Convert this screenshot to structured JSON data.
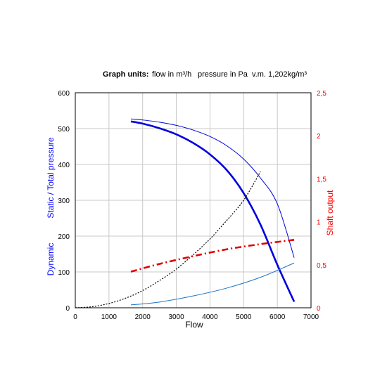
{
  "header": {
    "label": "Graph units:",
    "flow_units": "flow in m³/h",
    "pressure_units": "pressure in Pa",
    "density": "v.m. 1,202kg/m³"
  },
  "chart_data": {
    "type": "line",
    "xlabel": "Flow",
    "ylabel_left_static": "Static / Total pressure",
    "ylabel_left_dynamic": "Dynamic",
    "ylabel_right": "Shaft output",
    "xlim": [
      0,
      7000
    ],
    "ylim_left": [
      0,
      600
    ],
    "ylim_right": [
      0,
      2.5
    ],
    "x_ticks": [
      0,
      1000,
      2000,
      3000,
      4000,
      5000,
      6000,
      7000
    ],
    "x_tick_labels": [
      "0",
      "1000",
      "2000",
      "3000",
      "4000",
      "5000",
      "6000",
      "7000"
    ],
    "y_left_ticks": [
      0,
      100,
      200,
      300,
      400,
      500,
      600
    ],
    "y_left_tick_labels": [
      "0",
      "100",
      "200",
      "300",
      "400",
      "500",
      "600"
    ],
    "y_right_ticks": [
      0,
      0.5,
      1,
      1.5,
      2,
      2.5
    ],
    "y_right_tick_labels": [
      "0",
      "0,5",
      "1",
      "1,5",
      "2",
      "2,5"
    ],
    "grid": true,
    "colors": {
      "static": "#0000dd",
      "total": "#0000dd",
      "dynamic": "#1a73c8",
      "shaft": "#e00000",
      "system": "#000000",
      "left_axis_label": "#0000ff",
      "right_axis_label": "#ff0000"
    },
    "series": [
      {
        "key": "total",
        "axis": "left",
        "style": "thin",
        "x": [
          1650,
          2000,
          2500,
          3000,
          3500,
          4000,
          4500,
          5000,
          5500,
          6000,
          6500
        ],
        "y": [
          527,
          524,
          518,
          509,
          496,
          478,
          452,
          415,
          362,
          290,
          140
        ]
      },
      {
        "key": "static",
        "axis": "left",
        "style": "thick",
        "x": [
          1650,
          2000,
          2500,
          3000,
          3500,
          4000,
          4500,
          5000,
          5500,
          6000,
          6500
        ],
        "y": [
          520,
          514,
          501,
          484,
          460,
          428,
          384,
          320,
          232,
          120,
          17
        ]
      },
      {
        "key": "dynamic",
        "axis": "left",
        "style": "thin",
        "x": [
          1650,
          2500,
          3500,
          4500,
          5500,
          6500
        ],
        "y": [
          8,
          16,
          33,
          55,
          85,
          125
        ]
      },
      {
        "key": "system",
        "axis": "left",
        "style": "dotted",
        "x": [
          0,
          500,
          1000,
          1500,
          2000,
          2500,
          3000,
          3500,
          4000,
          4500,
          5000,
          5500
        ],
        "y": [
          0,
          3,
          12,
          27,
          48,
          76,
          108,
          148,
          192,
          244,
          300,
          380
        ]
      },
      {
        "key": "shaft",
        "axis": "right",
        "style": "dashdot",
        "x": [
          1650,
          2500,
          3500,
          4500,
          5500,
          6500
        ],
        "y": [
          0.42,
          0.51,
          0.6,
          0.68,
          0.74,
          0.79
        ]
      }
    ]
  }
}
